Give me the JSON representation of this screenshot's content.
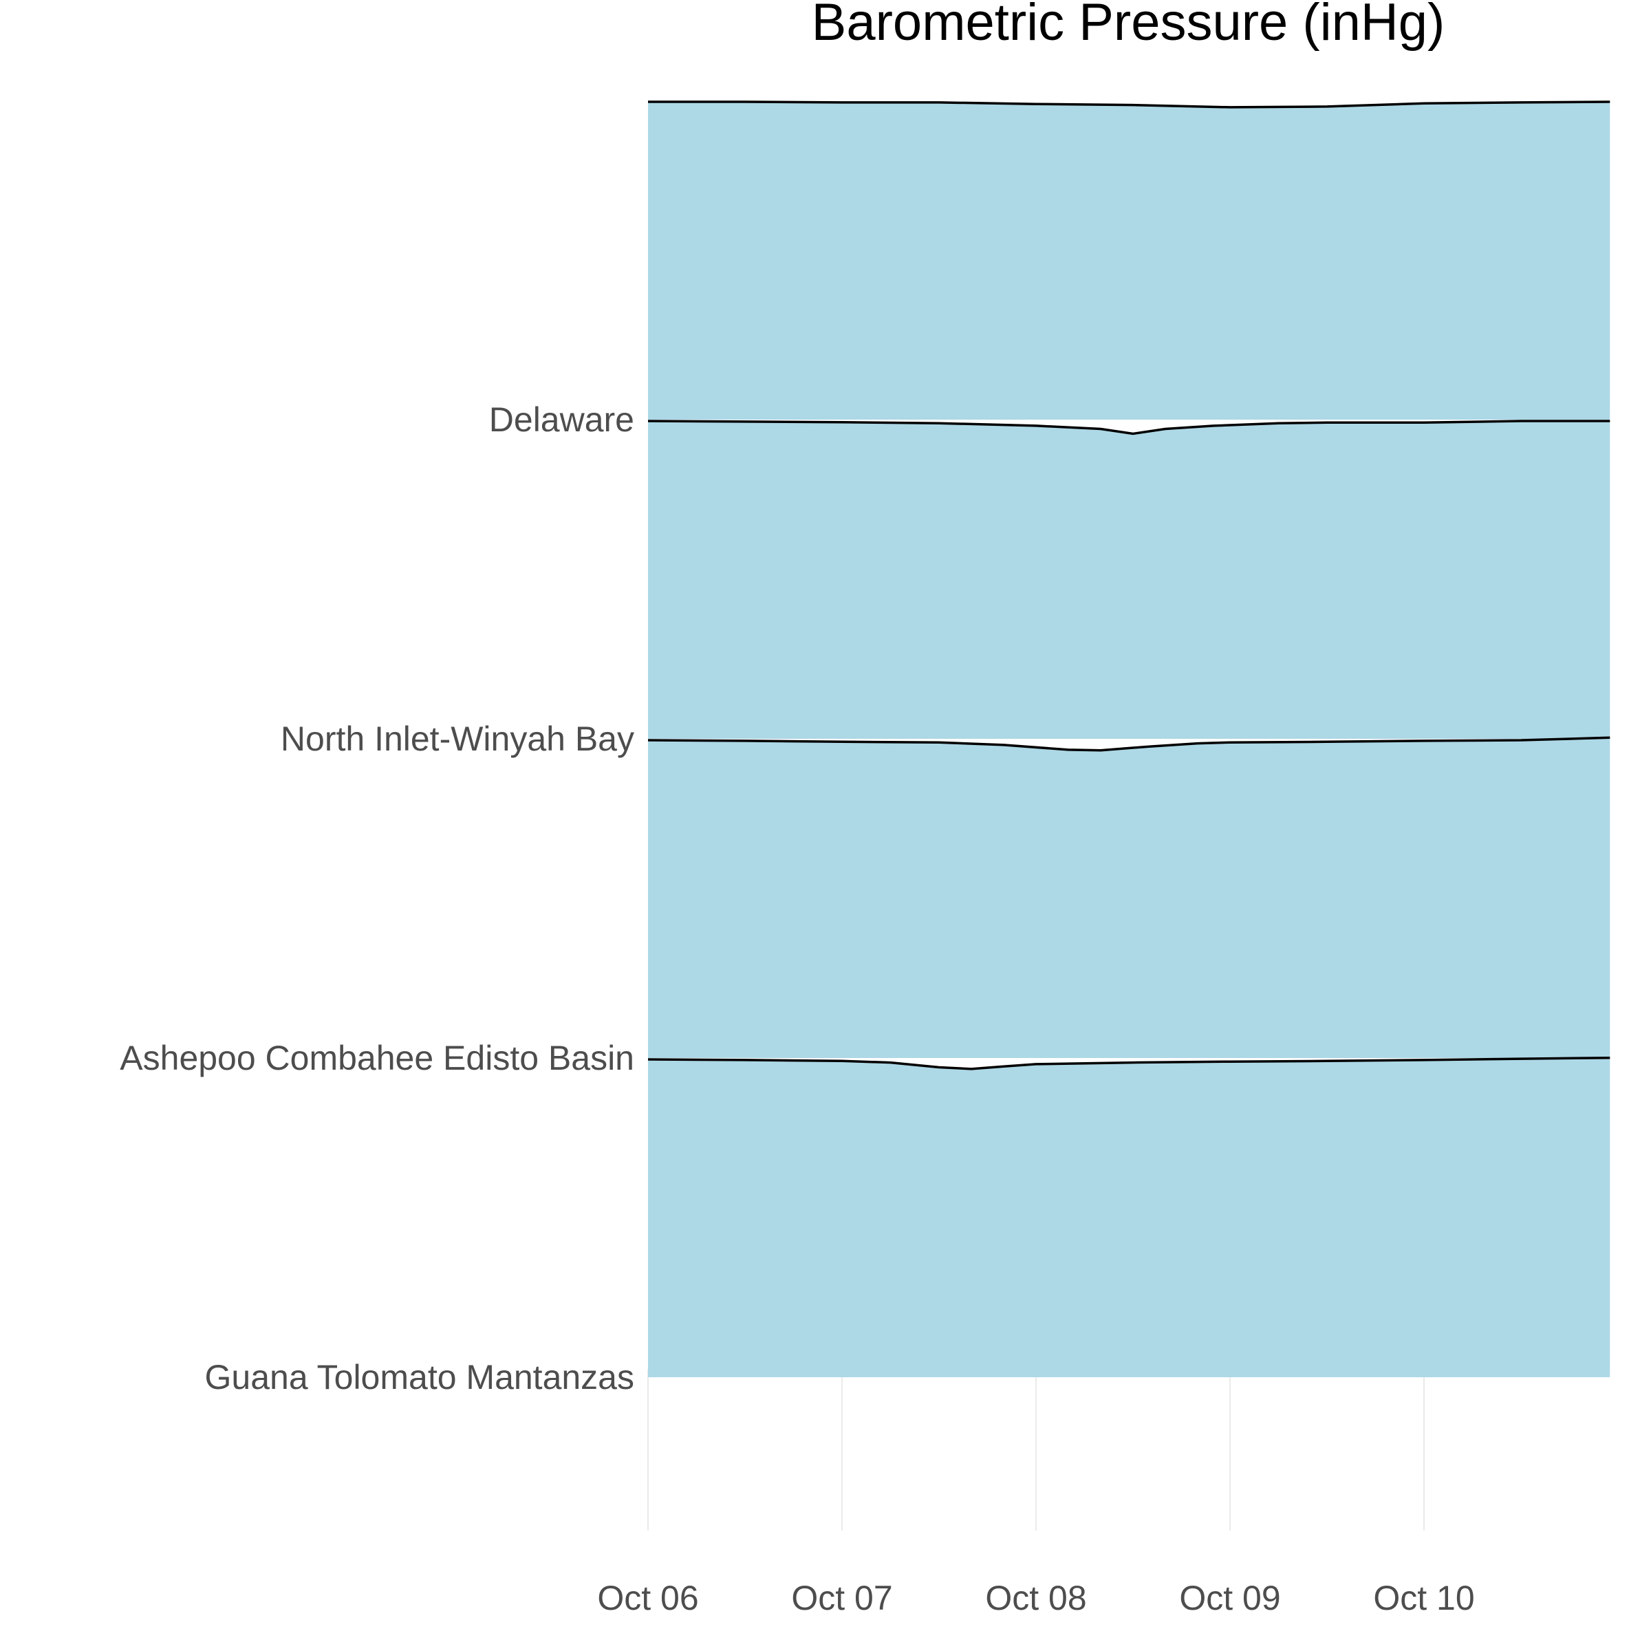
{
  "chart_data": {
    "type": "area",
    "chart_style": "ridgeline",
    "title": "Barometric Pressure (inHg)",
    "xlabel": "",
    "ylabel": "",
    "x_ticks": [
      "Oct 06",
      "Oct 07",
      "Oct 08",
      "Oct 09",
      "Oct 10"
    ],
    "xlim": [
      "Oct 06 00:00",
      "Oct 10 23:00"
    ],
    "categories": [
      "Guana Tolomato Mantanzas",
      "Ashepoo Combahee Edisto Basin",
      "North Inlet-Winyah Bay",
      "Delaware"
    ],
    "fill_color": "#add8e6",
    "line_color": "#000000",
    "grid": "vertical-major",
    "legend": "none",
    "series": [
      {
        "name": "Guana Tolomato Mantanzas",
        "points": [
          [
            "Oct 06 00:00",
            1.0
          ],
          [
            "Oct 06 12:00",
            0.998
          ],
          [
            "Oct 07 00:00",
            0.995
          ],
          [
            "Oct 07 06:00",
            0.99
          ],
          [
            "Oct 07 12:00",
            0.975
          ],
          [
            "Oct 07 16:00",
            0.97
          ],
          [
            "Oct 07 20:00",
            0.978
          ],
          [
            "Oct 08 00:00",
            0.985
          ],
          [
            "Oct 08 12:00",
            0.99
          ],
          [
            "Oct 09 00:00",
            0.993
          ],
          [
            "Oct 09 12:00",
            0.995
          ],
          [
            "Oct 10 00:00",
            0.998
          ],
          [
            "Oct 10 12:00",
            1.002
          ],
          [
            "Oct 10 23:00",
            1.005
          ]
        ]
      },
      {
        "name": "Ashepoo Combahee Edisto Basin",
        "points": [
          [
            "Oct 06 00:00",
            1.0
          ],
          [
            "Oct 06 12:00",
            0.998
          ],
          [
            "Oct 07 00:00",
            0.995
          ],
          [
            "Oct 07 12:00",
            0.993
          ],
          [
            "Oct 07 20:00",
            0.985
          ],
          [
            "Oct 08 04:00",
            0.97
          ],
          [
            "Oct 08 08:00",
            0.968
          ],
          [
            "Oct 08 14:00",
            0.98
          ],
          [
            "Oct 08 20:00",
            0.99
          ],
          [
            "Oct 09 00:00",
            0.993
          ],
          [
            "Oct 09 12:00",
            0.995
          ],
          [
            "Oct 10 00:00",
            0.998
          ],
          [
            "Oct 10 12:00",
            1.0
          ],
          [
            "Oct 10 23:00",
            1.008
          ]
        ]
      },
      {
        "name": "North Inlet-Winyah Bay",
        "points": [
          [
            "Oct 06 00:00",
            1.0
          ],
          [
            "Oct 06 12:00",
            0.998
          ],
          [
            "Oct 07 00:00",
            0.996
          ],
          [
            "Oct 07 12:00",
            0.993
          ],
          [
            "Oct 08 00:00",
            0.985
          ],
          [
            "Oct 08 08:00",
            0.975
          ],
          [
            "Oct 08 12:00",
            0.96
          ],
          [
            "Oct 08 16:00",
            0.975
          ],
          [
            "Oct 08 22:00",
            0.985
          ],
          [
            "Oct 09 06:00",
            0.993
          ],
          [
            "Oct 09 12:00",
            0.995
          ],
          [
            "Oct 10 00:00",
            0.995
          ],
          [
            "Oct 10 12:00",
            1.0
          ],
          [
            "Oct 10 23:00",
            1.0
          ]
        ]
      },
      {
        "name": "Delaware",
        "points": [
          [
            "Oct 06 00:00",
            1.0
          ],
          [
            "Oct 06 12:00",
            1.0
          ],
          [
            "Oct 07 00:00",
            0.998
          ],
          [
            "Oct 07 12:00",
            0.998
          ],
          [
            "Oct 08 00:00",
            0.993
          ],
          [
            "Oct 08 12:00",
            0.99
          ],
          [
            "Oct 09 00:00",
            0.983
          ],
          [
            "Oct 09 12:00",
            0.985
          ],
          [
            "Oct 10 00:00",
            0.995
          ],
          [
            "Oct 10 12:00",
            0.998
          ],
          [
            "Oct 10 23:00",
            1.0
          ]
        ]
      }
    ]
  }
}
